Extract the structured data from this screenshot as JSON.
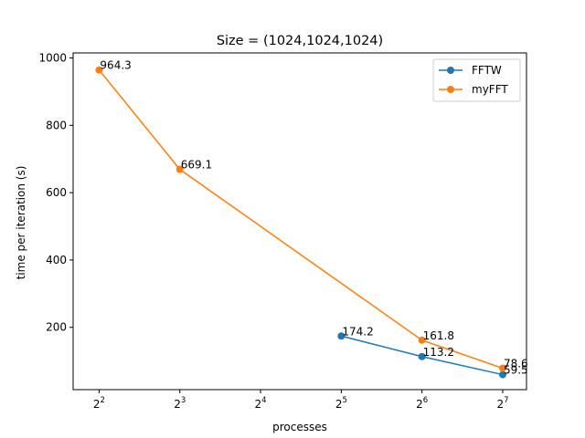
{
  "chart_data": {
    "type": "line",
    "title": "Size = (1024,1024,1024)",
    "xlabel": "processes",
    "ylabel": "time per iteration (s)",
    "x_scale": "log2",
    "xlim": [
      3.2,
      157
    ],
    "ylim": [
      15,
      1015
    ],
    "x_ticks": [
      {
        "value": 4,
        "base": "2",
        "exp": "2"
      },
      {
        "value": 8,
        "base": "2",
        "exp": "3"
      },
      {
        "value": 16,
        "base": "2",
        "exp": "4"
      },
      {
        "value": 32,
        "base": "2",
        "exp": "5"
      },
      {
        "value": 64,
        "base": "2",
        "exp": "6"
      },
      {
        "value": 128,
        "base": "2",
        "exp": "7"
      }
    ],
    "y_ticks": [
      {
        "value": 200,
        "label": "200"
      },
      {
        "value": 400,
        "label": "400"
      },
      {
        "value": 600,
        "label": "600"
      },
      {
        "value": 800,
        "label": "800"
      },
      {
        "value": 1000,
        "label": "1000"
      }
    ],
    "grid": false,
    "legend_position": "top-right",
    "series": [
      {
        "name": "FFTW",
        "color": "#1f77b4",
        "x": [
          32,
          64,
          128
        ],
        "y": [
          174.2,
          113.2,
          59.5
        ],
        "labels": [
          "174.2",
          "113.2",
          "59.5"
        ]
      },
      {
        "name": "myFFT",
        "color": "#ff7f0e",
        "x": [
          4,
          8,
          64,
          128
        ],
        "y": [
          964.3,
          669.1,
          161.8,
          78.6
        ],
        "labels": [
          "964.3",
          "669.1",
          "161.8",
          "78.6"
        ]
      }
    ]
  }
}
